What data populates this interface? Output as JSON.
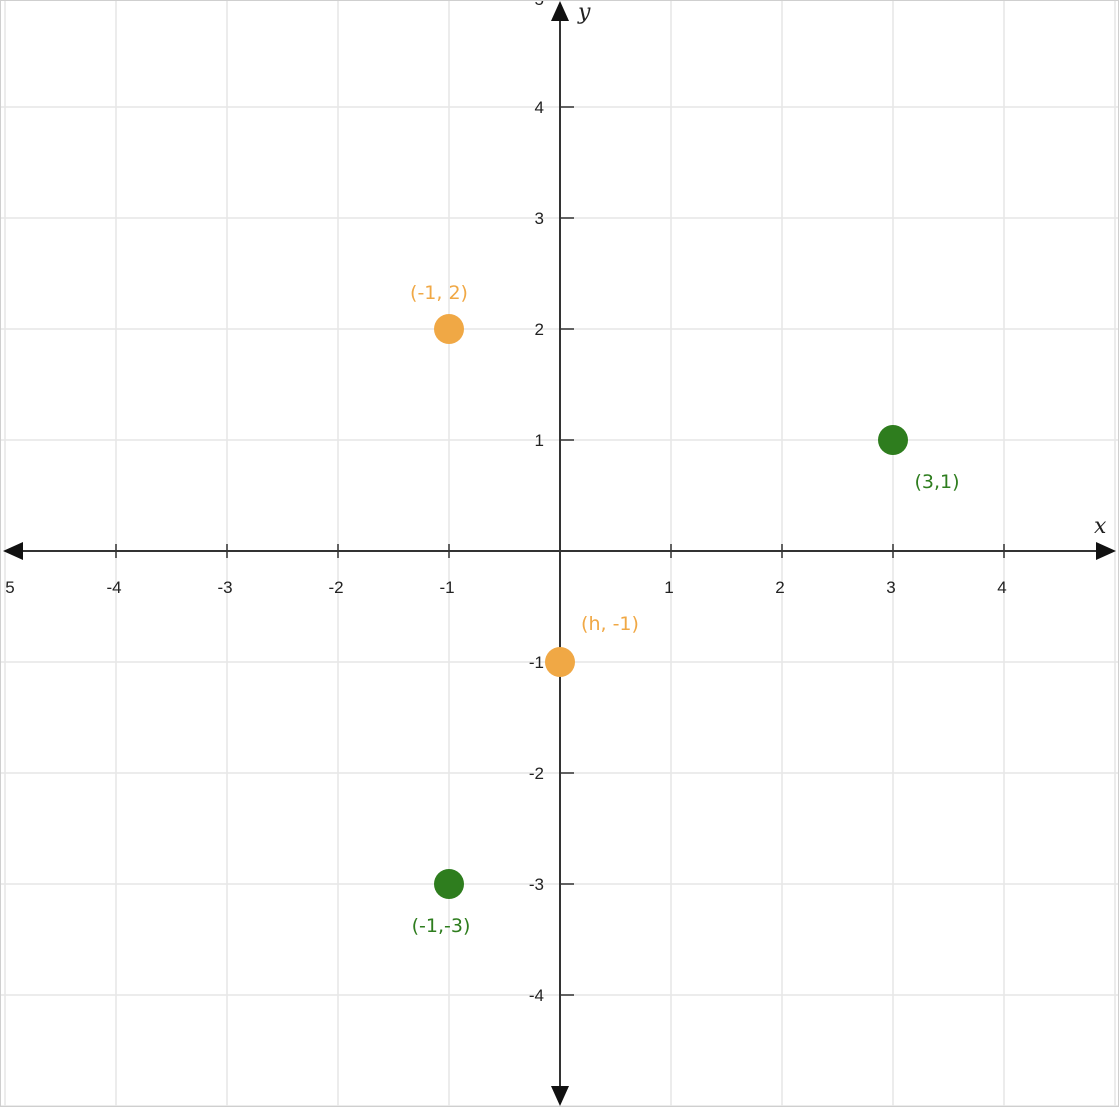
{
  "chart_data": {
    "type": "scatter",
    "title": "",
    "xlabel": "x",
    "ylabel": "y",
    "xlim": [
      -5,
      5
    ],
    "ylim": [
      -5,
      5
    ],
    "grid": true,
    "x_ticks": [
      "5",
      "-4",
      "-3",
      "-2",
      "-1",
      "1",
      "2",
      "3",
      "4"
    ],
    "y_ticks": [
      "4",
      "3",
      "2",
      "1",
      "-1",
      "-2",
      "-3",
      "-4"
    ],
    "points": [
      {
        "x": -1,
        "y": 2,
        "label": "(-1, 2)",
        "color": "#f0a845",
        "label_pos": "above"
      },
      {
        "x": 0,
        "y": -1,
        "label": "(h, -1)",
        "color": "#f0a845",
        "label_pos": "above-right"
      },
      {
        "x": 3,
        "y": 1,
        "label": "(3,1)",
        "color": "#2e7d1e",
        "label_pos": "below-right"
      },
      {
        "x": -1,
        "y": -3,
        "label": "(-1,-3)",
        "color": "#2e7d1e",
        "label_pos": "below"
      }
    ],
    "colors": {
      "axis": "#333333",
      "grid": "#e6e6e6",
      "orange": "#f0a845",
      "green": "#2e7d1e"
    }
  }
}
